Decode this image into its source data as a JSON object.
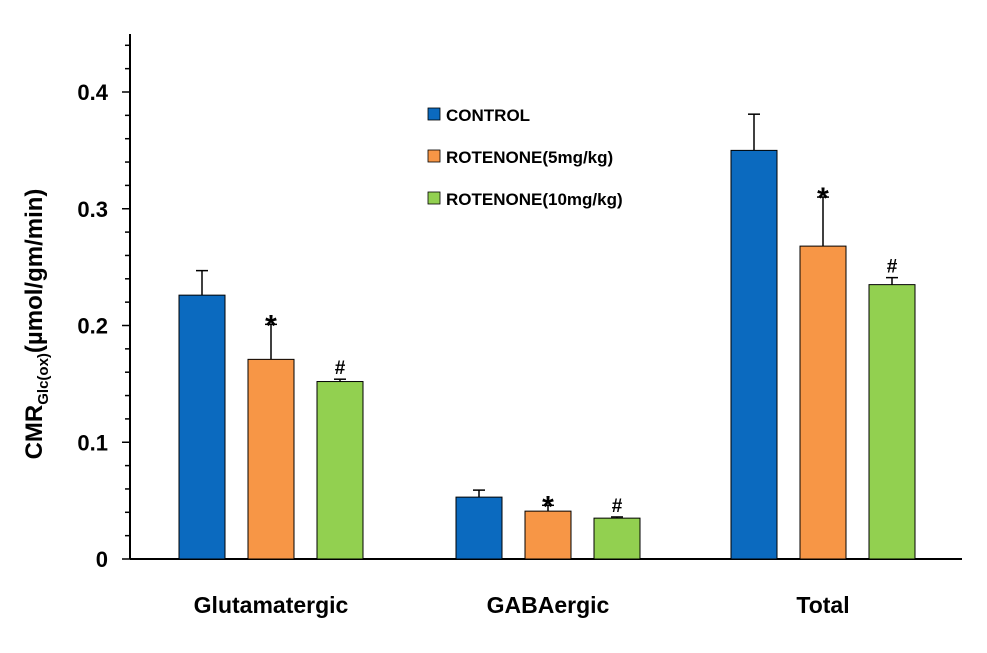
{
  "chart_data": {
    "type": "bar",
    "title": "",
    "xlabel": "",
    "ylabel": {
      "main": "CMR",
      "subscript": "Glc(ox)",
      "units": "(µmol/gm/min)"
    },
    "ylim": [
      0,
      0.45
    ],
    "yticks": [
      0,
      0.1,
      0.2,
      0.3,
      0.4
    ],
    "ytick_labels": [
      "0",
      "0.1",
      "0.2",
      "0.3",
      "0.4"
    ],
    "categories": [
      "Glutamatergic",
      "GABAergic",
      "Total"
    ],
    "series": [
      {
        "name": "CONTROL",
        "color": "#0b6abf",
        "values": [
          0.226,
          0.053,
          0.35
        ],
        "errors": [
          0.021,
          0.006,
          0.031
        ],
        "markers": [
          "",
          "",
          ""
        ]
      },
      {
        "name": "ROTENONE(5mg/kg)",
        "color": "#f79646",
        "values": [
          0.171,
          0.041,
          0.268
        ],
        "errors": [
          0.03,
          0.005,
          0.042
        ],
        "markers": [
          "*",
          "*",
          "*"
        ]
      },
      {
        "name": "ROTENONE(10mg/kg)",
        "color": "#92d050",
        "values": [
          0.152,
          0.035,
          0.235
        ],
        "errors": [
          0.002,
          0.001,
          0.006
        ],
        "markers": [
          "#",
          "#",
          "#"
        ]
      }
    ],
    "legend_position": "top-center"
  }
}
